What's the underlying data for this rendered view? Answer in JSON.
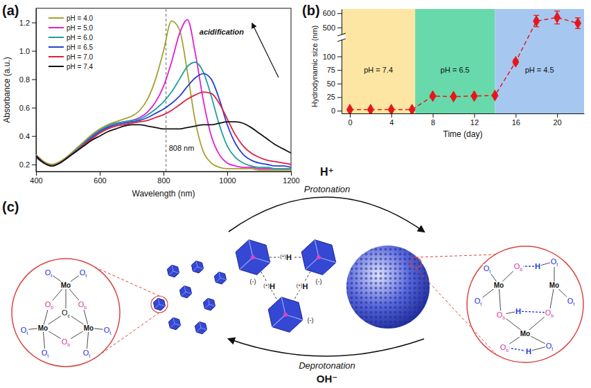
{
  "chart_data": [
    {
      "type": "line",
      "panel_label": "(a)",
      "x_label": "Wavelength (nm)",
      "y_label": "Absorbance (a.u.)",
      "x": [
        400,
        425,
        450,
        475,
        500,
        525,
        550,
        575,
        600,
        625,
        650,
        675,
        700,
        725,
        750,
        775,
        800,
        825,
        850,
        875,
        900,
        925,
        950,
        975,
        1000,
        1025,
        1050,
        1075,
        1100,
        1125,
        1150,
        1175,
        1200
      ],
      "series": [
        {
          "name": "pH = 4.0",
          "color": "#a3a12e",
          "values": [
            0.27,
            0.22,
            0.2,
            0.22,
            0.26,
            0.31,
            0.36,
            0.41,
            0.45,
            0.48,
            0.5,
            0.52,
            0.54,
            0.58,
            0.66,
            0.8,
            1.0,
            1.21,
            1.15,
            0.85,
            0.5,
            0.29,
            0.21,
            0.18,
            0.17,
            0.17,
            0.17,
            0.17,
            0.16,
            0.16,
            0.16,
            0.16,
            0.16
          ]
        },
        {
          "name": "pH = 5.0",
          "color": "#e01fd0",
          "values": [
            0.26,
            0.21,
            0.19,
            0.21,
            0.25,
            0.3,
            0.35,
            0.4,
            0.44,
            0.47,
            0.49,
            0.5,
            0.51,
            0.53,
            0.57,
            0.64,
            0.75,
            0.92,
            1.12,
            1.22,
            0.98,
            0.65,
            0.4,
            0.27,
            0.21,
            0.19,
            0.18,
            0.18,
            0.17,
            0.17,
            0.17,
            0.17,
            0.17
          ]
        },
        {
          "name": "pH = 6.0",
          "color": "#1f9e9e",
          "values": [
            0.25,
            0.21,
            0.19,
            0.21,
            0.25,
            0.3,
            0.35,
            0.4,
            0.44,
            0.47,
            0.49,
            0.5,
            0.51,
            0.52,
            0.55,
            0.59,
            0.64,
            0.71,
            0.8,
            0.89,
            0.92,
            0.85,
            0.68,
            0.48,
            0.33,
            0.25,
            0.21,
            0.19,
            0.18,
            0.18,
            0.17,
            0.17,
            0.17
          ]
        },
        {
          "name": "pH = 6.5",
          "color": "#2740d0",
          "values": [
            0.25,
            0.21,
            0.19,
            0.21,
            0.25,
            0.29,
            0.34,
            0.39,
            0.43,
            0.46,
            0.48,
            0.49,
            0.5,
            0.51,
            0.53,
            0.56,
            0.59,
            0.63,
            0.68,
            0.75,
            0.81,
            0.84,
            0.8,
            0.66,
            0.48,
            0.35,
            0.27,
            0.23,
            0.21,
            0.2,
            0.19,
            0.19,
            0.18
          ]
        },
        {
          "name": "pH = 7.0",
          "color": "#e0203f",
          "values": [
            0.26,
            0.21,
            0.19,
            0.21,
            0.25,
            0.29,
            0.34,
            0.38,
            0.42,
            0.45,
            0.47,
            0.48,
            0.49,
            0.5,
            0.51,
            0.53,
            0.55,
            0.58,
            0.62,
            0.66,
            0.69,
            0.71,
            0.7,
            0.63,
            0.52,
            0.41,
            0.33,
            0.28,
            0.25,
            0.23,
            0.22,
            0.21,
            0.2
          ]
        },
        {
          "name": "pH = 7.4",
          "color": "#111111",
          "values": [
            0.26,
            0.21,
            0.19,
            0.21,
            0.25,
            0.29,
            0.33,
            0.37,
            0.4,
            0.43,
            0.45,
            0.47,
            0.48,
            0.48,
            0.47,
            0.46,
            0.45,
            0.45,
            0.45,
            0.46,
            0.47,
            0.48,
            0.48,
            0.49,
            0.5,
            0.5,
            0.49,
            0.46,
            0.42,
            0.38,
            0.34,
            0.31,
            0.28
          ]
        }
      ],
      "xlim": [
        400,
        1200
      ],
      "xticks": [
        400,
        600,
        800,
        1000,
        1200
      ],
      "ylim": [
        0.15,
        1.3
      ],
      "yticks": [
        0.2,
        0.4,
        0.6,
        0.8,
        {
          "value": 1,
          "label": "1.0"
        },
        1.2
      ],
      "annotations": [
        {
          "text": "808 nm",
          "x": 808
        },
        {
          "text": "acidification"
        }
      ],
      "legend": "upper left"
    },
    {
      "type": "line",
      "panel_label": "(b)",
      "x_label": "Time (day)",
      "y_label": "Hydrodynamic size (nm)",
      "x": [
        0,
        2,
        4,
        6,
        8,
        10,
        12,
        14,
        16,
        18,
        20,
        22
      ],
      "values": [
        2,
        2,
        2,
        2,
        27,
        26,
        27,
        28,
        90,
        545,
        570,
        530
      ],
      "errors": [
        0,
        0,
        0,
        0,
        1,
        1,
        1,
        1,
        4,
        40,
        45,
        38
      ],
      "color": "#e8161b",
      "marker": "diamond",
      "line_style": "dashed",
      "xlim": [
        -0.8,
        22.6
      ],
      "xticks": [
        0,
        4,
        8,
        12,
        16,
        20
      ],
      "ylim": [
        -5,
        630
      ],
      "yticks": [
        0,
        25,
        50,
        75,
        100,
        500,
        600
      ],
      "axis_break": [
        130,
        450
      ],
      "regions": [
        {
          "label": "pH = 7.4",
          "from": -0.8,
          "to": 6.3,
          "color": "#fde6a3"
        },
        {
          "label": "pH = 6.5",
          "from": 6.3,
          "to": 14,
          "color": "#67d9aa"
        },
        {
          "label": "pH = 4.5",
          "from": 14,
          "to": 22.6,
          "color": "#a6c8f0"
        }
      ]
    }
  ],
  "diagram": {
    "panel_label": "(c)",
    "top_ion": "H⁺",
    "top_process": "Protonation",
    "bottom_process": "Deprotonation",
    "bottom_ion": "OH⁻",
    "proton": "H",
    "positive_charge": "(+)",
    "negative_charge": "(-)",
    "left_inset": {
      "atoms": [
        {
          "label": "Mo"
        },
        {
          "label": "Mo"
        },
        {
          "label": "Mo"
        },
        {
          "label": "O",
          "sub": "c"
        },
        {
          "label": "O",
          "sub": "b"
        },
        {
          "label": "O",
          "sub": "b"
        },
        {
          "label": "O",
          "sub": "b"
        },
        {
          "label": "O",
          "sub": "t"
        },
        {
          "label": "O",
          "sub": "t"
        },
        {
          "label": "O",
          "sub": "t"
        },
        {
          "label": "O",
          "sub": "t"
        },
        {
          "label": "O",
          "sub": "t"
        },
        {
          "label": "O",
          "sub": "t"
        }
      ]
    },
    "right_inset": {
      "atoms": [
        {
          "label": "Mo"
        },
        {
          "label": "Mo"
        },
        {
          "label": "Mo"
        },
        {
          "label": "O",
          "sub": "t"
        },
        {
          "label": "O",
          "sub": "b"
        },
        {
          "label": "H"
        },
        {
          "label": "O",
          "sub": "t"
        },
        {
          "label": "O",
          "sub": "b"
        },
        {
          "label": "H"
        },
        {
          "label": "O",
          "sub": "b"
        },
        {
          "label": "O",
          "sub": "t"
        },
        {
          "label": "O",
          "sub": "t"
        },
        {
          "label": "O",
          "sub": "b"
        },
        {
          "label": "H"
        },
        {
          "label": "O",
          "sub": "t"
        }
      ]
    }
  }
}
